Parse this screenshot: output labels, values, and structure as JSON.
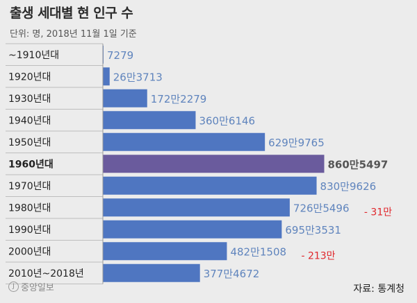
{
  "title": "출생 세대별 현 인구 수",
  "subtitle": "단위: 명, 2018년 11월 1일 기준",
  "source": "자료: 통계청",
  "logo_text": "중앙일보",
  "colors": {
    "bar": "#4f76c1",
    "highlight_bar": "#6a5b9d",
    "value_text": "#5f84bd",
    "highlight_text": "#555555",
    "annotation": "#e0262b"
  },
  "chart_data": {
    "type": "bar",
    "orientation": "horizontal",
    "categories": [
      "~1910년대",
      "1920년대",
      "1930년대",
      "1940년대",
      "1950년대",
      "1960년대",
      "1970년대",
      "1980년대",
      "1990년대",
      "2000년대",
      "2010년~2018년"
    ],
    "values": [
      7279,
      263713,
      1722279,
      3606146,
      6299765,
      8605497,
      8309626,
      7265496,
      6953531,
      4821508,
      3774672
    ],
    "value_labels": [
      "7279",
      "26만3713",
      "172만2279",
      "360만6146",
      "629만9765",
      "860만5497",
      "830만9626",
      "726만5496",
      "695만3531",
      "482만1508",
      "377만4672"
    ],
    "highlight_index": 5,
    "annotations": [
      {
        "category": "1980년대",
        "text": "- 31만"
      },
      {
        "category": "2000년대",
        "text": "- 213만"
      }
    ],
    "xlim": [
      0,
      8700000
    ],
    "grid": false,
    "legend": "none"
  }
}
